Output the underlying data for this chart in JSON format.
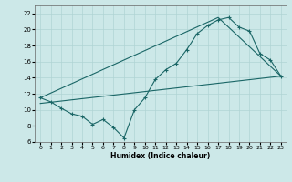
{
  "xlabel": "Humidex (Indice chaleur)",
  "xlim": [
    -0.5,
    23.5
  ],
  "ylim": [
    6,
    23
  ],
  "yticks": [
    6,
    8,
    10,
    12,
    14,
    16,
    18,
    20,
    22
  ],
  "xticks": [
    0,
    1,
    2,
    3,
    4,
    5,
    6,
    7,
    8,
    9,
    10,
    11,
    12,
    13,
    14,
    15,
    16,
    17,
    18,
    19,
    20,
    21,
    22,
    23
  ],
  "bg_color": "#cce8e8",
  "grid_color": "#b0d4d4",
  "line_color": "#1a6666",
  "main_x": [
    0,
    1,
    2,
    3,
    4,
    5,
    6,
    7,
    8,
    9,
    10,
    11,
    12,
    13,
    14,
    15,
    16,
    17,
    18,
    19,
    20,
    21,
    22,
    23
  ],
  "main_y": [
    11.5,
    11.0,
    10.2,
    9.5,
    9.2,
    8.2,
    8.8,
    7.8,
    6.5,
    10.0,
    11.5,
    13.8,
    15.0,
    15.8,
    17.5,
    19.5,
    20.5,
    21.2,
    21.5,
    20.3,
    19.8,
    17.0,
    16.2,
    14.2
  ],
  "line2_x": [
    0,
    17,
    23
  ],
  "line2_y": [
    11.5,
    21.5,
    14.2
  ],
  "line3_x": [
    0,
    23
  ],
  "line3_y": [
    10.8,
    14.2
  ]
}
